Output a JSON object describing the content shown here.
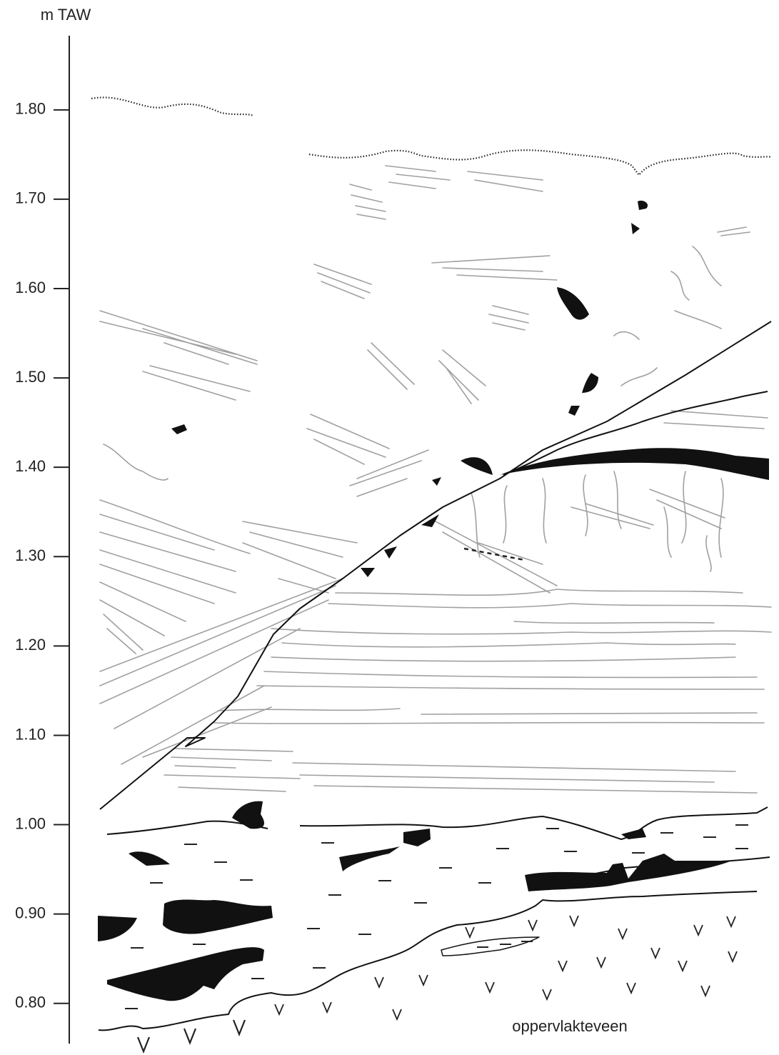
{
  "axis": {
    "label": "m TAW",
    "ylim": [
      0.755,
      1.883
    ],
    "ticks": [
      {
        "value": 1.8,
        "label": "1.80"
      },
      {
        "value": 1.7,
        "label": "1.70"
      },
      {
        "value": 1.6,
        "label": "1.60"
      },
      {
        "value": 1.5,
        "label": "1.50"
      },
      {
        "value": 1.4,
        "label": "1.40"
      },
      {
        "value": 1.3,
        "label": "1.30"
      },
      {
        "value": 1.2,
        "label": "1.20"
      },
      {
        "value": 1.1,
        "label": "1.10"
      },
      {
        "value": 1.0,
        "label": "1.00"
      },
      {
        "value": 0.9,
        "label": "0.90"
      },
      {
        "value": 0.8,
        "label": "0.80"
      }
    ]
  },
  "annotation": "oppervlakteveen"
}
